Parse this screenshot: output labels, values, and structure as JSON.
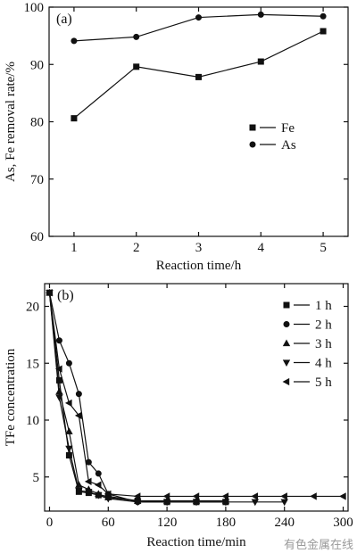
{
  "watermark": "有色金属在线",
  "chart_data": [
    {
      "panel_label": "(a)",
      "type": "line",
      "xlabel": "Reaction time/h",
      "ylabel": "As, Fe removal rate/%",
      "xlim": [
        0.6,
        5.4
      ],
      "ylim": [
        60,
        100
      ],
      "x_ticks": [
        1,
        2,
        3,
        4,
        5
      ],
      "y_ticks": [
        60,
        70,
        80,
        90,
        100
      ],
      "x": [
        1,
        2,
        3,
        4,
        5
      ],
      "series": [
        {
          "name": "Fe",
          "marker": "square",
          "values": [
            80.6,
            89.6,
            87.8,
            90.5,
            95.8
          ]
        },
        {
          "name": "As",
          "marker": "circle",
          "values": [
            94.1,
            94.8,
            98.2,
            98.7,
            98.4
          ]
        }
      ],
      "legend": "center-right",
      "grid": false
    },
    {
      "panel_label": "(b)",
      "type": "line",
      "xlabel": "Reaction time/min",
      "ylabel": "TFe concentration",
      "xlim": [
        -5,
        305
      ],
      "ylim": [
        2,
        22
      ],
      "x_ticks": [
        0,
        60,
        120,
        180,
        240,
        300
      ],
      "y_ticks": [
        5,
        10,
        15,
        20
      ],
      "series": [
        {
          "name": "1 h",
          "marker": "square",
          "x": [
            0,
            10,
            20,
            30,
            40,
            50,
            60,
            90,
            120,
            150,
            180
          ],
          "values": [
            21.2,
            13.5,
            6.9,
            3.7,
            3.6,
            3.4,
            3.3,
            2.9,
            2.8,
            2.8,
            2.8
          ]
        },
        {
          "name": "2 h",
          "marker": "circle",
          "x": [
            0,
            10,
            20,
            30,
            40,
            50,
            60,
            90,
            120,
            150,
            180
          ],
          "values": [
            21.2,
            17.0,
            15.0,
            12.3,
            6.3,
            5.3,
            3.5,
            2.8,
            2.8,
            2.8,
            2.8
          ]
        },
        {
          "name": "3 h",
          "marker": "triangle-up",
          "x": [
            0,
            10,
            20,
            30,
            40,
            50,
            60,
            90,
            120,
            150,
            180
          ],
          "values": [
            21.2,
            12.5,
            9.0,
            4.3,
            3.9,
            3.5,
            3.2,
            2.9,
            2.9,
            2.9,
            2.9
          ]
        },
        {
          "name": "4 h",
          "marker": "triangle-down",
          "x": [
            0,
            10,
            20,
            30,
            40,
            50,
            60,
            90,
            120,
            150,
            180,
            210,
            240
          ],
          "values": [
            21.2,
            12.0,
            7.5,
            3.8,
            3.7,
            3.4,
            3.1,
            2.8,
            2.8,
            2.8,
            2.8,
            2.8,
            2.8
          ]
        },
        {
          "name": "5 h",
          "marker": "triangle-left",
          "x": [
            0,
            10,
            20,
            30,
            40,
            50,
            60,
            90,
            120,
            150,
            180,
            210,
            240,
            270,
            300
          ],
          "values": [
            21.2,
            14.5,
            11.5,
            10.4,
            4.6,
            4.3,
            3.5,
            3.3,
            3.3,
            3.3,
            3.3,
            3.3,
            3.3,
            3.3,
            3.3
          ]
        }
      ],
      "legend": "top-right",
      "grid": false
    }
  ]
}
